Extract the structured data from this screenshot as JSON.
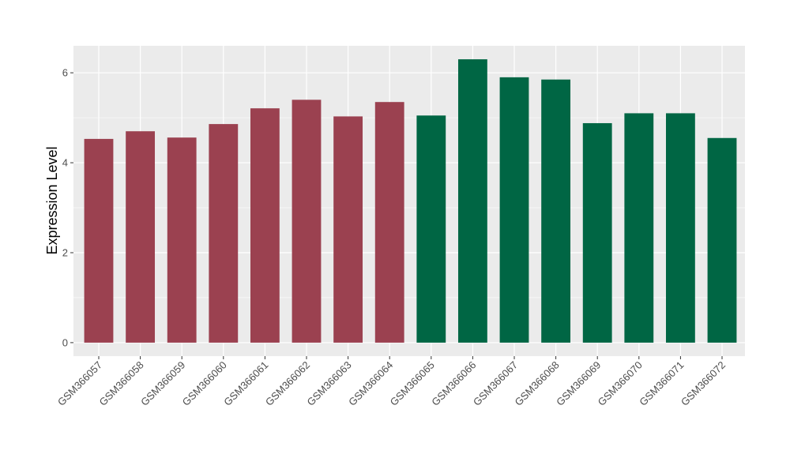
{
  "chart_data": {
    "type": "bar",
    "title": "",
    "xlabel": "",
    "ylabel": "Expression Level",
    "ylim": [
      -0.3,
      6.6
    ],
    "yticks": [
      0,
      2,
      4,
      6
    ],
    "grid": true,
    "legend": "none",
    "categories": [
      "GSM366057",
      "GSM366058",
      "GSM366059",
      "GSM366060",
      "GSM366061",
      "GSM366062",
      "GSM366063",
      "GSM366064",
      "GSM366065",
      "GSM366066",
      "GSM366067",
      "GSM366068",
      "GSM366069",
      "GSM366070",
      "GSM366071",
      "GSM366072"
    ],
    "values": [
      4.53,
      4.7,
      4.56,
      4.86,
      5.21,
      5.4,
      5.03,
      5.35,
      5.05,
      6.3,
      5.9,
      5.85,
      4.88,
      5.1,
      5.1,
      4.55
    ],
    "bar_colors": [
      "#9b4150",
      "#9b4150",
      "#9b4150",
      "#9b4150",
      "#9b4150",
      "#9b4150",
      "#9b4150",
      "#9b4150",
      "#006644",
      "#006644",
      "#006644",
      "#006644",
      "#006644",
      "#006644",
      "#006644",
      "#006644"
    ],
    "panel_background": "#ebebeb",
    "gridline_color": "#ffffff"
  }
}
